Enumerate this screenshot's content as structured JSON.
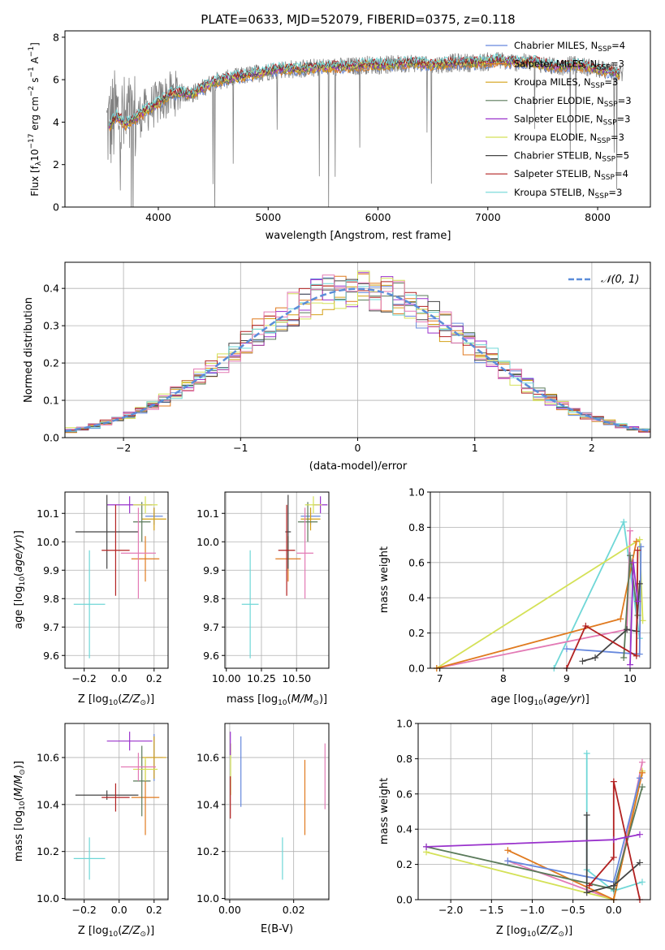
{
  "figure_title": "PLATE=0633, MJD=52079, FIBERID=0375, z=0.118",
  "chart_data": [
    {
      "id": "spectrum",
      "type": "line",
      "title": "PLATE=0633, MJD=52079, FIBERID=0375, z=0.118",
      "xlabel": "wavelength [Angstrom, rest frame]",
      "ylabel": "Flux [f_λ 10^-17 erg cm^-2 s^-1 A^-1]",
      "xlim": [
        3150,
        8480
      ],
      "ylim": [
        0,
        8.3
      ],
      "xticks": [
        4000,
        5000,
        6000,
        7000,
        8000
      ],
      "yticks": [
        0,
        2,
        4,
        6,
        8
      ],
      "grid": false,
      "legend": "top-right",
      "data_color": "#808080",
      "continuum": {
        "x": [
          3550,
          3620,
          3700,
          3800,
          3900,
          4000,
          4100,
          4200,
          4300,
          4400,
          4500,
          4700,
          4900,
          5100,
          5300,
          5500,
          5700,
          5900,
          6100,
          6300,
          6500,
          6700,
          6900,
          7100,
          7300,
          7450,
          7600,
          7800,
          8000,
          8200
        ],
        "y": [
          3.8,
          4.3,
          3.9,
          4.2,
          4.6,
          4.9,
          5.3,
          5.4,
          5.3,
          5.6,
          5.9,
          6.1,
          6.3,
          6.5,
          6.5,
          6.6,
          6.6,
          6.7,
          6.7,
          6.8,
          6.7,
          6.8,
          6.8,
          6.9,
          6.8,
          6.8,
          6.6,
          6.7,
          6.5,
          6.3
        ]
      },
      "series": [
        {
          "name": "Chabrier MILES, N_SSP=4",
          "name_html": "Chabrier MILES, N<tspan font-size=\"9\" dy=\"3\">SSP</tspan><tspan dy=\"-3\">=4</tspan>",
          "color": "#6688dd"
        },
        {
          "name": "Salpeter MILES, N_SSP=3",
          "name_html": "Salpeter MILES, N<tspan font-size=\"9\" dy=\"3\">SSP</tspan><tspan dy=\"-3\">=3</tspan>",
          "color": "#e07a1f"
        },
        {
          "name": "Kroupa MILES, N_SSP=3",
          "name_html": "Kroupa MILES, N<tspan font-size=\"9\" dy=\"3\">SSP</tspan><tspan dy=\"-3\">=3</tspan>",
          "color": "#d4a017"
        },
        {
          "name": "Chabrier ELODIE, N_SSP=3",
          "name_html": "Chabrier ELODIE, N<tspan font-size=\"9\" dy=\"3\">SSP</tspan><tspan dy=\"-3\">=3</tspan>",
          "color": "#5a7a5a"
        },
        {
          "name": "Salpeter ELODIE, N_SSP=3",
          "name_html": "Salpeter ELODIE, N<tspan font-size=\"9\" dy=\"3\">SSP</tspan><tspan dy=\"-3\">=3</tspan>",
          "color": "#9932cc"
        },
        {
          "name": "Kroupa ELODIE, N_SSP=3",
          "name_html": "Kroupa ELODIE, N<tspan font-size=\"9\" dy=\"3\">SSP</tspan><tspan dy=\"-3\">=3</tspan>",
          "color": "#d4e157"
        },
        {
          "name": "Chabrier STELIB, N_SSP=5",
          "name_html": "Chabrier STELIB, N<tspan font-size=\"9\" dy=\"3\">SSP</tspan><tspan dy=\"-3\">=5</tspan>",
          "color": "#444444"
        },
        {
          "name": "Salpeter STELIB, N_SSP=4",
          "name_html": "Salpeter STELIB, N<tspan font-size=\"9\" dy=\"3\">SSP</tspan><tspan dy=\"-3\">=4</tspan>",
          "color": "#b22222"
        },
        {
          "name": "Kroupa STELIB, N_SSP=3",
          "name_html": "Kroupa STELIB, N<tspan font-size=\"9\" dy=\"3\">SSP</tspan><tspan dy=\"-3\">=3</tspan>",
          "color": "#6fd7d7"
        }
      ]
    },
    {
      "id": "residuals",
      "type": "histogram",
      "xlabel": "(data-model)/error",
      "ylabel": "Normed distribution",
      "xlim": [
        -2.5,
        2.5
      ],
      "ylim": [
        0,
        0.47
      ],
      "xticks": [
        -2,
        -1,
        0,
        1,
        2
      ],
      "yticks": [
        0.0,
        0.1,
        0.2,
        0.3,
        0.4
      ],
      "grid": true,
      "legend": "top-right",
      "reference": {
        "name": "𝒩(0, 1)",
        "mean": 0,
        "sigma": 1,
        "color": "#5b8dd9",
        "style": "dashed"
      }
    },
    {
      "id": "age_vs_Z",
      "type": "errorbar",
      "xlabel": "Z [log10(Z/Z⊙)]",
      "ylabel": "age [log10(age/yr)]",
      "xlim": [
        -0.31,
        0.28
      ],
      "ylim": [
        9.555,
        10.175
      ],
      "xticks": [
        -0.2,
        0.0,
        0.2
      ],
      "yticks": [
        9.6,
        9.7,
        9.8,
        9.9,
        10.0,
        10.1
      ],
      "grid": true,
      "points": [
        {
          "series": "Chabrier MILES",
          "x": 0.2,
          "xerr": 0.05,
          "y": 10.09,
          "yerr": 0.03
        },
        {
          "series": "Salpeter MILES",
          "x": 0.15,
          "xerr": 0.08,
          "y": 9.94,
          "yerr": 0.08
        },
        {
          "series": "Kroupa MILES",
          "x": 0.2,
          "xerr": 0.07,
          "y": 10.08,
          "yerr": 0.04
        },
        {
          "series": "Chabrier ELODIE",
          "x": 0.13,
          "xerr": 0.05,
          "y": 10.07,
          "yerr": 0.07
        },
        {
          "series": "Salpeter ELODIE",
          "x": 0.06,
          "xerr": 0.13,
          "y": 10.13,
          "yerr": 0.03
        },
        {
          "series": "Kroupa ELODIE",
          "x": 0.15,
          "xerr": 0.07,
          "y": 10.13,
          "yerr": 0.03
        },
        {
          "series": "Chabrier STELIB",
          "x": -0.07,
          "xerr": 0.18,
          "y": 10.035,
          "yerr": 0.13
        },
        {
          "series": "Salpeter STELIB",
          "x": -0.02,
          "xerr": 0.08,
          "y": 9.97,
          "yerr": 0.16
        },
        {
          "series": "Kroupa STELIB",
          "x": -0.17,
          "xerr": 0.09,
          "y": 9.78,
          "yerr": 0.19
        },
        {
          "series": "Chabrier MILES pink",
          "x": 0.11,
          "xerr": 0.1,
          "y": 9.96,
          "yerr": 0.16
        }
      ]
    },
    {
      "id": "age_vs_mass",
      "type": "errorbar",
      "xlabel": "mass [log10(M/M⊙)]",
      "xlim": [
        9.99,
        10.73
      ],
      "ylim": [
        9.555,
        10.175
      ],
      "xticks": [
        10.0,
        10.25,
        10.5
      ],
      "xtick_labels": [
        "10.00",
        "10.25",
        "10.50"
      ],
      "yticks": [
        9.6,
        9.7,
        9.8,
        9.9,
        10.0,
        10.1
      ],
      "grid": true,
      "points": [
        {
          "series": "Chabrier MILES",
          "x": 10.6,
          "xerr": 0.07,
          "y": 10.09,
          "yerr": 0.03
        },
        {
          "series": "Salpeter MILES",
          "x": 10.44,
          "xerr": 0.09,
          "y": 9.94,
          "yerr": 0.08
        },
        {
          "series": "Kroupa MILES",
          "x": 10.6,
          "xerr": 0.07,
          "y": 10.08,
          "yerr": 0.04
        },
        {
          "series": "Chabrier ELODIE",
          "x": 10.58,
          "xerr": 0.07,
          "y": 10.07,
          "yerr": 0.07
        },
        {
          "series": "Salpeter ELODIE",
          "x": 10.67,
          "xerr": 0.05,
          "y": 10.13,
          "yerr": 0.03
        },
        {
          "series": "Kroupa ELODIE",
          "x": 10.62,
          "xerr": 0.06,
          "y": 10.13,
          "yerr": 0.03
        },
        {
          "series": "Chabrier STELIB",
          "x": 10.44,
          "xerr": 0.02,
          "y": 10.035,
          "yerr": 0.13
        },
        {
          "series": "Salpeter STELIB",
          "x": 10.43,
          "xerr": 0.06,
          "y": 9.97,
          "yerr": 0.16
        },
        {
          "series": "Kroupa STELIB",
          "x": 10.17,
          "xerr": 0.06,
          "y": 9.78,
          "yerr": 0.19
        },
        {
          "series": "Chabrier MILES pink",
          "x": 10.56,
          "xerr": 0.06,
          "y": 9.96,
          "yerr": 0.16
        }
      ]
    },
    {
      "id": "weight_vs_age",
      "type": "line",
      "xlabel": "age [log10(age/yr)]",
      "ylabel": "mass weight",
      "xlim": [
        6.85,
        10.32
      ],
      "ylim": [
        0,
        1.0
      ],
      "xticks": [
        7,
        8,
        9,
        10
      ],
      "yticks": [
        0.0,
        0.2,
        0.4,
        0.6,
        0.8,
        1.0
      ],
      "grid": true,
      "series": [
        {
          "color": "#6fd7d7",
          "x": [
            8.8,
            9.9,
            10.15
          ],
          "y": [
            0.0,
            0.83,
            0.17
          ]
        },
        {
          "color": "#e37ab5",
          "x": [
            6.95,
            9.95,
            10.0
          ],
          "y": [
            0.0,
            0.22,
            0.78
          ]
        },
        {
          "color": "#d4e157",
          "x": [
            6.95,
            10.15,
            10.2
          ],
          "y": [
            0.0,
            0.73,
            0.27
          ]
        },
        {
          "color": "#e07a1f",
          "x": [
            6.95,
            9.85,
            10.1
          ],
          "y": [
            0.0,
            0.28,
            0.72
          ]
        },
        {
          "color": "#6688dd",
          "x": [
            9.0,
            10.15,
            10.17
          ],
          "y": [
            0.11,
            0.08,
            0.69
          ]
        },
        {
          "color": "#5a7a5a",
          "x": [
            9.9,
            10.0,
            10.12
          ],
          "y": [
            0.06,
            0.64,
            0.3
          ]
        },
        {
          "color": "#444444",
          "x": [
            9.25,
            9.45,
            9.95,
            10.1,
            10.15
          ],
          "y": [
            0.04,
            0.06,
            0.22,
            0.21,
            0.48
          ]
        },
        {
          "color": "#b22222",
          "x": [
            9.0,
            9.3,
            10.1,
            10.12
          ],
          "y": [
            0.0,
            0.24,
            0.07,
            0.67
          ]
        },
        {
          "color": "#9932cc",
          "x": [
            10.0,
            10.05,
            10.12
          ],
          "y": [
            0.02,
            0.6,
            0.38
          ]
        }
      ]
    },
    {
      "id": "mass_vs_Z",
      "type": "errorbar",
      "xlabel": "Z [log10(Z/Z⊙)]",
      "ylabel": "mass [log10(M/M⊙)]",
      "xlim": [
        -0.31,
        0.28
      ],
      "ylim": [
        9.995,
        10.745
      ],
      "xticks": [
        -0.2,
        0.0,
        0.2
      ],
      "yticks": [
        10.0,
        10.2,
        10.4,
        10.6
      ],
      "grid": true,
      "points": [
        {
          "series": "Chabrier MILES",
          "x": 0.2,
          "xerr": 0.05,
          "y": 10.6,
          "yerr": 0.1
        },
        {
          "series": "Salpeter MILES",
          "x": 0.15,
          "xerr": 0.08,
          "y": 10.43,
          "yerr": 0.16
        },
        {
          "series": "Kroupa MILES",
          "x": 0.2,
          "xerr": 0.07,
          "y": 10.6,
          "yerr": 0.09
        },
        {
          "series": "Chabrier ELODIE",
          "x": 0.13,
          "xerr": 0.05,
          "y": 10.5,
          "yerr": 0.15
        },
        {
          "series": "Salpeter ELODIE",
          "x": 0.06,
          "xerr": 0.13,
          "y": 10.67,
          "yerr": 0.04
        },
        {
          "series": "Kroupa ELODIE",
          "x": 0.15,
          "xerr": 0.07,
          "y": 10.55,
          "yerr": 0.05
        },
        {
          "series": "Chabrier STELIB",
          "x": -0.07,
          "xerr": 0.18,
          "y": 10.44,
          "yerr": 0.02
        },
        {
          "series": "Salpeter STELIB",
          "x": -0.02,
          "xerr": 0.08,
          "y": 10.43,
          "yerr": 0.06
        },
        {
          "series": "Kroupa STELIB",
          "x": -0.17,
          "xerr": 0.09,
          "y": 10.17,
          "yerr": 0.09
        },
        {
          "series": "Chabrier MILES pink",
          "x": 0.11,
          "xerr": 0.1,
          "y": 10.56,
          "yerr": 0.06
        }
      ]
    },
    {
      "id": "mass_vs_ebv",
      "type": "errorbar",
      "xlabel": "E(B-V)",
      "xlim": [
        -0.0015,
        0.031
      ],
      "ylim": [
        9.995,
        10.745
      ],
      "xticks": [
        0.0,
        0.02
      ],
      "xtick_labels": [
        "0.00",
        "0.02"
      ],
      "yticks": [
        10.0,
        10.2,
        10.4,
        10.6
      ],
      "grid": true,
      "points": [
        {
          "series": "Chabrier MILES",
          "x": 0.0035,
          "xerr": 0,
          "y": 10.54,
          "yerr": 0.15
        },
        {
          "series": "Salpeter MILES",
          "x": 0.0235,
          "xerr": 0,
          "y": 10.43,
          "yerr": 0.16
        },
        {
          "series": "Kroupa ELODIE",
          "x": 0.0003,
          "xerr": 0,
          "y": 10.55,
          "yerr": 0.11
        },
        {
          "series": "Salpeter ELODIE",
          "x": 0.0002,
          "xerr": 0,
          "y": 10.66,
          "yerr": 0.05
        },
        {
          "series": "Salpeter STELIB",
          "x": 0.0002,
          "xerr": 0,
          "y": 10.43,
          "yerr": 0.09
        },
        {
          "series": "Kroupa STELIB",
          "x": 0.0165,
          "xerr": 0,
          "y": 10.17,
          "yerr": 0.09
        },
        {
          "series": "Chabrier MILES pink",
          "x": 0.0298,
          "xerr": 0,
          "y": 10.52,
          "yerr": 0.14
        }
      ]
    },
    {
      "id": "weight_vs_Z",
      "type": "line",
      "xlabel": "Z [log10(Z/Z⊙)]",
      "ylabel": "mass weight",
      "xlim": [
        -2.4,
        0.45
      ],
      "ylim": [
        0,
        1.0
      ],
      "xticks": [
        -2.0,
        -1.5,
        -1.0,
        -0.5,
        0.0
      ],
      "yticks": [
        0.0,
        0.2,
        0.4,
        0.6,
        0.8,
        1.0
      ],
      "grid": true,
      "series": [
        {
          "color": "#6fd7d7",
          "x": [
            -0.33,
            -0.33,
            0.0,
            0.35
          ],
          "y": [
            0.83,
            0.17,
            0.05,
            0.1
          ]
        },
        {
          "color": "#e37ab5",
          "x": [
            -1.3,
            0.0,
            0.35
          ],
          "y": [
            0.22,
            0.0,
            0.78
          ]
        },
        {
          "color": "#d4e157",
          "x": [
            -2.3,
            0.0,
            0.35
          ],
          "y": [
            0.27,
            0.0,
            0.73
          ]
        },
        {
          "color": "#e07a1f",
          "x": [
            -1.3,
            0.0,
            0.35
          ],
          "y": [
            0.28,
            0.0,
            0.72
          ]
        },
        {
          "color": "#6688dd",
          "x": [
            -1.3,
            0.0,
            0.32
          ],
          "y": [
            0.22,
            0.1,
            0.69
          ]
        },
        {
          "color": "#5a7a5a",
          "x": [
            -2.3,
            0.0,
            0.35
          ],
          "y": [
            0.3,
            0.06,
            0.64
          ]
        },
        {
          "color": "#444444",
          "x": [
            -0.33,
            -0.33,
            0.0,
            0.32
          ],
          "y": [
            0.48,
            0.04,
            0.08,
            0.21
          ]
        },
        {
          "color": "#b22222",
          "x": [
            -0.3,
            0.0,
            0.0,
            0.32
          ],
          "y": [
            0.08,
            0.24,
            0.67,
            0.0
          ]
        },
        {
          "color": "#9932cc",
          "x": [
            -2.3,
            0.0,
            0.32
          ],
          "y": [
            0.3,
            0.34,
            0.37
          ]
        }
      ]
    }
  ]
}
